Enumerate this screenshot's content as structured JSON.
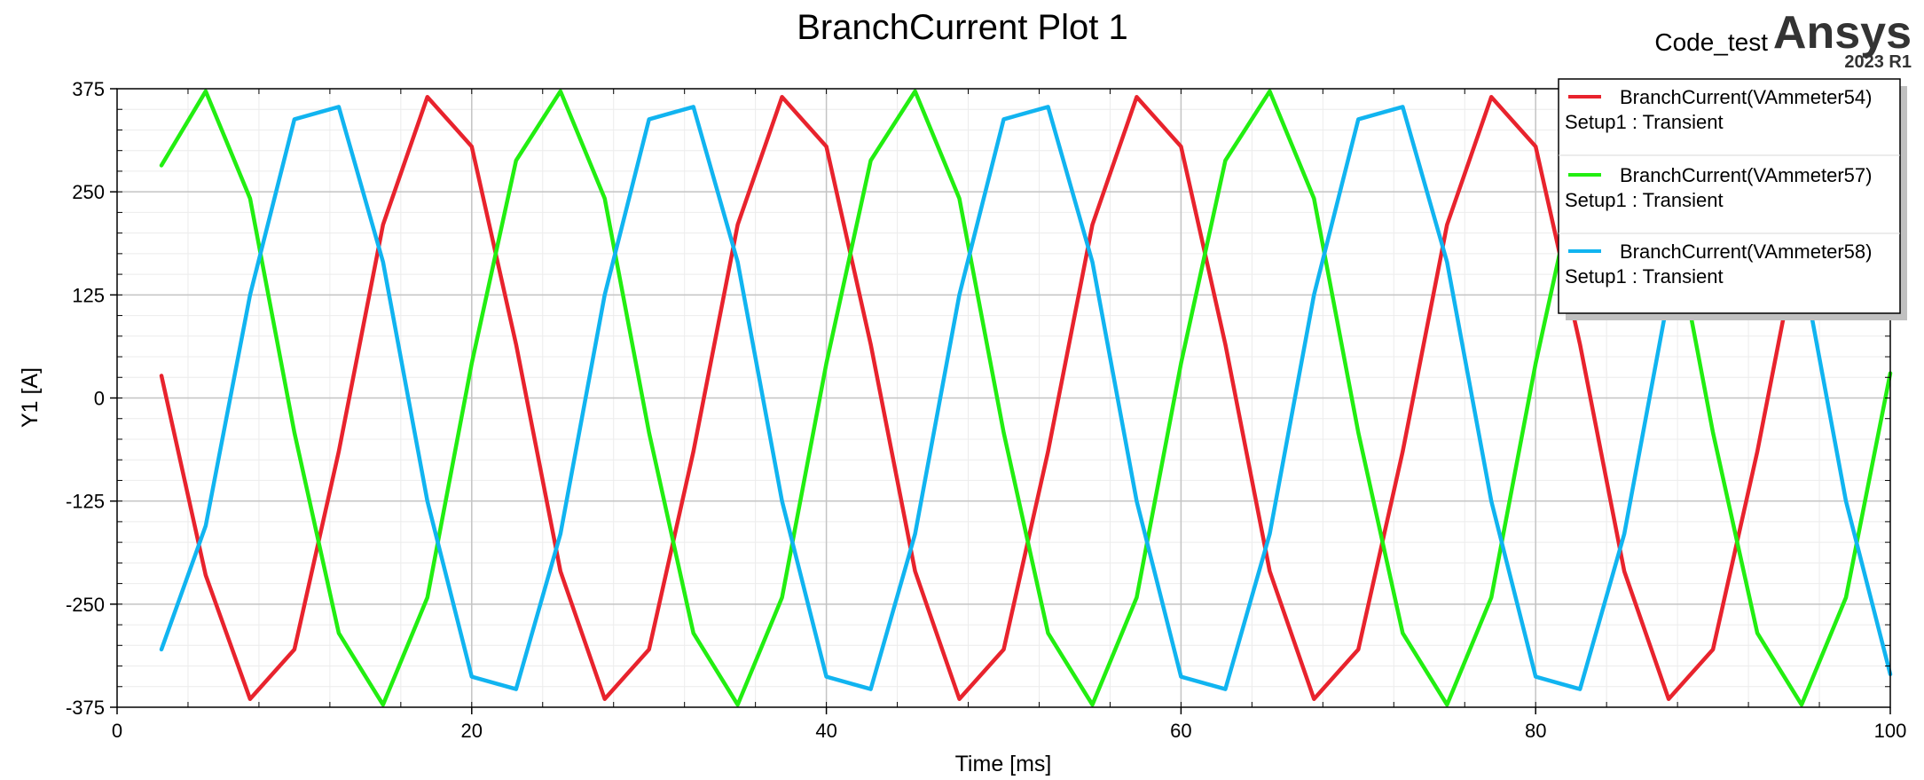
{
  "branding": {
    "project": "Code_test",
    "logo": "Ansys",
    "version": "2023 R1"
  },
  "chart_data": {
    "type": "line",
    "title": "BranchCurrent Plot 1",
    "xlabel": "Time [ms]",
    "ylabel": "Y1 [A]",
    "xlim": [
      0,
      100
    ],
    "ylim": [
      -375,
      375
    ],
    "x_ticks": [
      0,
      20,
      40,
      60,
      80,
      100
    ],
    "y_ticks": [
      375,
      250,
      125,
      0,
      -125,
      -250,
      -375
    ],
    "x_tick_labels": [
      "0",
      "20",
      "40",
      "60",
      "80",
      "100"
    ],
    "y_tick_labels": [
      "375",
      "250",
      "125",
      "0",
      "-125",
      "-250",
      "-375"
    ],
    "grid": true,
    "legend_position": "top-right",
    "colors": {
      "red": "#e8232d",
      "green": "#22ee11",
      "blue": "#11b4f0"
    },
    "x": [
      2.5,
      5,
      7.5,
      10,
      12.5,
      15,
      17.5,
      20,
      22.5,
      25,
      27.5,
      30,
      32.5,
      35,
      37.5,
      40,
      42.5,
      45,
      47.5,
      50,
      52.5,
      55,
      57.5,
      60,
      62.5,
      65,
      67.5,
      70,
      72.5,
      75,
      77.5,
      80,
      82.5,
      85,
      87.5,
      90,
      92.5,
      95,
      97.5,
      100
    ],
    "series": [
      {
        "name": "BranchCurrent(VAmmeter54)",
        "setup": "Setup1 : Transient",
        "color": "#e8232d",
        "values": [
          27,
          -215,
          -365,
          -305,
          -65,
          210,
          365,
          305,
          65,
          -210,
          -365,
          -305,
          -65,
          210,
          365,
          305,
          65,
          -210,
          -365,
          -305,
          -65,
          210,
          365,
          305,
          65,
          -210,
          -365,
          -305,
          -65,
          210,
          365,
          305,
          65,
          -210,
          -365,
          -305,
          -65,
          210,
          365,
          305
        ]
      },
      {
        "name": "BranchCurrent(VAmmeter57)",
        "setup": "Setup1 : Transient",
        "color": "#22ee11",
        "values": [
          282,
          372,
          242,
          -42,
          -285,
          -372,
          -242,
          42,
          288,
          372,
          242,
          -42,
          -285,
          -372,
          -242,
          42,
          288,
          372,
          242,
          -42,
          -285,
          -372,
          -242,
          42,
          288,
          372,
          242,
          -42,
          -285,
          -372,
          -242,
          42,
          288,
          372,
          242,
          -42,
          -285,
          -372,
          -242,
          30
        ]
      },
      {
        "name": "BranchCurrent(VAmmeter58)",
        "setup": "Setup1 : Transient",
        "color": "#11b4f0",
        "values": [
          -305,
          -155,
          125,
          338,
          353,
          165,
          -125,
          -338,
          -353,
          -165,
          125,
          338,
          353,
          165,
          -125,
          -338,
          -353,
          -165,
          125,
          338,
          353,
          165,
          -125,
          -338,
          -353,
          -165,
          125,
          338,
          353,
          165,
          -125,
          -338,
          -353,
          -165,
          125,
          338,
          353,
          165,
          -125,
          -335
        ]
      }
    ]
  }
}
